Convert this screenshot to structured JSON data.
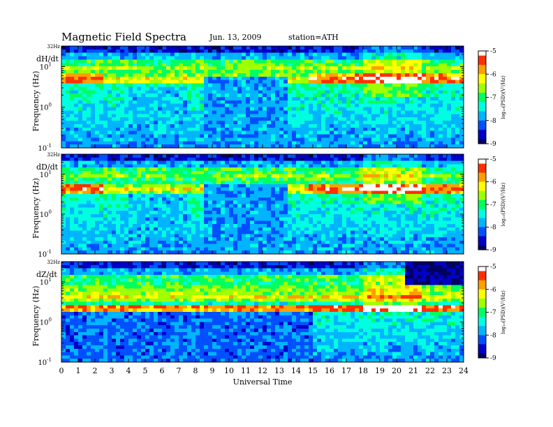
{
  "header": {
    "title": "Magnetic  Field  Spectra",
    "date": "Jun. 13, 2009",
    "station": "station=ATH"
  },
  "colors": {
    "colormap": [
      "#000060",
      "#0000c8",
      "#0050ff",
      "#00b4ff",
      "#00ffe0",
      "#00ff60",
      "#a0ff00",
      "#ffff00",
      "#ffa000",
      "#ff3000",
      "#ffffff"
    ]
  },
  "chart_data": [
    {
      "type": "heatmap",
      "panel_label": "dH/dt",
      "top_label": "32Hz",
      "ylabel": "Frequency  (Hz)",
      "y_scale": "log",
      "ylim": [
        0.1,
        32
      ],
      "yticks": [
        {
          "value": 0.1,
          "base": "10",
          "exp": "-1"
        },
        {
          "value": 1,
          "base": "10",
          "exp": "0"
        },
        {
          "value": 10,
          "base": "10",
          "exp": "1"
        }
      ],
      "xlim": [
        0,
        24
      ],
      "colorbar": {
        "label": "log₁₀(PSD)(V²/Hz)",
        "range": [
          -9,
          -5
        ],
        "ticks": [
          "-5",
          "-6",
          "-7",
          "-8",
          "-9"
        ]
      }
    },
    {
      "type": "heatmap",
      "panel_label": "dD/dt",
      "top_label": "32Hz",
      "ylabel": "Frequency  (Hz)",
      "y_scale": "log",
      "ylim": [
        0.1,
        32
      ],
      "yticks": [
        {
          "value": 0.1,
          "base": "10",
          "exp": "-1"
        },
        {
          "value": 1,
          "base": "10",
          "exp": "0"
        },
        {
          "value": 10,
          "base": "10",
          "exp": "1"
        }
      ],
      "xlim": [
        0,
        24
      ],
      "colorbar": {
        "label": "log₁₀(PSD)(V²/Hz)",
        "range": [
          -9,
          -5
        ],
        "ticks": [
          "-5",
          "-6",
          "-7",
          "-8",
          "-9"
        ]
      }
    },
    {
      "type": "heatmap",
      "panel_label": "dZ/dt",
      "top_label": "32Hz",
      "ylabel": "Frequency  (Hz)",
      "y_scale": "log",
      "ylim": [
        0.1,
        32
      ],
      "yticks": [
        {
          "value": 0.1,
          "base": "10",
          "exp": "-1"
        },
        {
          "value": 1,
          "base": "10",
          "exp": "0"
        },
        {
          "value": 10,
          "base": "10",
          "exp": "1"
        }
      ],
      "xlim": [
        0,
        24
      ],
      "colorbar": {
        "label": "log₁₀(PSD)(V²/Hz)",
        "range": [
          -9,
          -5
        ],
        "ticks": [
          "-5",
          "-6",
          "-7",
          "-8",
          "-9"
        ]
      }
    }
  ],
  "xaxis": {
    "label": "Universal  Time",
    "ticks": [
      "0",
      "1",
      "2",
      "3",
      "4",
      "5",
      "6",
      "7",
      "8",
      "9",
      "10",
      "11",
      "12",
      "13",
      "14",
      "15",
      "16",
      "17",
      "18",
      "19",
      "20",
      "21",
      "22",
      "23",
      "24"
    ]
  }
}
